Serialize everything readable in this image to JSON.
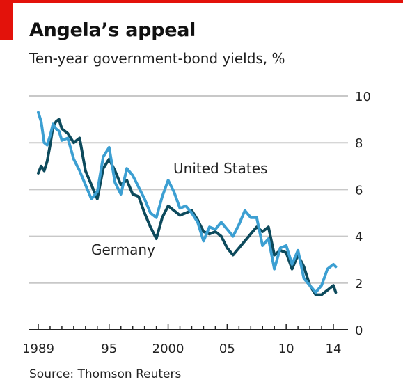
{
  "title": "Angela’s appeal",
  "subtitle": "Ten-year government-bond yields, %",
  "source": "Source: Thomson Reuters",
  "colors": {
    "brand_red": "#e3120b",
    "germany": "#0d4a5c",
    "united_states": "#3c9fd2",
    "grid": "#c8c8c8",
    "axis": "#222222"
  },
  "chart_data": {
    "type": "line",
    "xlim": [
      1989.0,
      2014.3
    ],
    "ylim": [
      0,
      10
    ],
    "grid": true,
    "y_ticks": [
      0,
      2,
      4,
      6,
      8,
      10
    ],
    "y_tick_labels": [
      "0",
      "2",
      "4",
      "6",
      "8",
      "10"
    ],
    "x_tick_labels": [
      {
        "x": 1989,
        "label": "1989"
      },
      {
        "x": 1995,
        "label": "95"
      },
      {
        "x": 2000,
        "label": "2000"
      },
      {
        "x": 2005,
        "label": "05"
      },
      {
        "x": 2010,
        "label": "10"
      },
      {
        "x": 2014,
        "label": "14"
      }
    ],
    "series": [
      {
        "name": "Germany",
        "x": [
          1989.0,
          1989.25,
          1989.5,
          1989.75,
          1990.0,
          1990.25,
          1990.5,
          1990.75,
          1991.0,
          1991.5,
          1992.0,
          1992.5,
          1993.0,
          1993.5,
          1994.0,
          1994.5,
          1995.0,
          1995.5,
          1996.0,
          1996.5,
          1997.0,
          1997.5,
          1998.0,
          1998.5,
          1999.0,
          1999.5,
          2000.0,
          2000.5,
          2001.0,
          2001.5,
          2002.0,
          2002.5,
          2003.0,
          2003.5,
          2004.0,
          2004.5,
          2005.0,
          2005.5,
          2006.0,
          2006.5,
          2007.0,
          2007.5,
          2008.0,
          2008.5,
          2009.0,
          2009.5,
          2010.0,
          2010.5,
          2011.0,
          2011.5,
          2012.0,
          2012.5,
          2013.0,
          2013.5,
          2014.0,
          2014.2
        ],
        "values": [
          6.7,
          7.0,
          6.8,
          7.2,
          7.9,
          8.7,
          8.9,
          9.0,
          8.6,
          8.4,
          8.0,
          8.2,
          6.8,
          6.2,
          5.6,
          6.9,
          7.3,
          6.8,
          6.2,
          6.4,
          5.8,
          5.7,
          5.0,
          4.4,
          3.9,
          4.8,
          5.3,
          5.1,
          4.9,
          5.0,
          5.1,
          4.7,
          4.2,
          4.1,
          4.2,
          4.0,
          3.5,
          3.2,
          3.5,
          3.8,
          4.1,
          4.4,
          4.2,
          4.4,
          3.2,
          3.4,
          3.3,
          2.6,
          3.2,
          2.7,
          1.9,
          1.5,
          1.5,
          1.7,
          1.9,
          1.6
        ]
      },
      {
        "name": "United States",
        "x": [
          1989.0,
          1989.25,
          1989.5,
          1989.75,
          1990.0,
          1990.25,
          1990.5,
          1990.75,
          1991.0,
          1991.5,
          1992.0,
          1992.5,
          1993.0,
          1993.5,
          1994.0,
          1994.5,
          1995.0,
          1995.5,
          1996.0,
          1996.5,
          1997.0,
          1997.5,
          1998.0,
          1998.5,
          1999.0,
          1999.5,
          2000.0,
          2000.5,
          2001.0,
          2001.5,
          2002.0,
          2002.5,
          2003.0,
          2003.5,
          2004.0,
          2004.5,
          2005.0,
          2005.5,
          2006.0,
          2006.5,
          2007.0,
          2007.5,
          2008.0,
          2008.5,
          2009.0,
          2009.5,
          2010.0,
          2010.5,
          2011.0,
          2011.5,
          2012.0,
          2012.5,
          2013.0,
          2013.5,
          2014.0,
          2014.2
        ],
        "values": [
          9.3,
          8.9,
          8.0,
          7.9,
          8.3,
          8.8,
          8.6,
          8.5,
          8.1,
          8.2,
          7.3,
          6.8,
          6.2,
          5.6,
          5.9,
          7.4,
          7.8,
          6.3,
          5.8,
          6.9,
          6.6,
          6.1,
          5.6,
          5.0,
          4.8,
          5.7,
          6.4,
          5.9,
          5.2,
          5.3,
          5.0,
          4.6,
          3.8,
          4.4,
          4.3,
          4.6,
          4.3,
          4.0,
          4.5,
          5.1,
          4.8,
          4.8,
          3.6,
          3.9,
          2.6,
          3.5,
          3.6,
          2.8,
          3.4,
          2.2,
          1.9,
          1.6,
          1.9,
          2.6,
          2.8,
          2.7
        ]
      }
    ],
    "annotations": [
      "United States",
      "Germany"
    ]
  }
}
